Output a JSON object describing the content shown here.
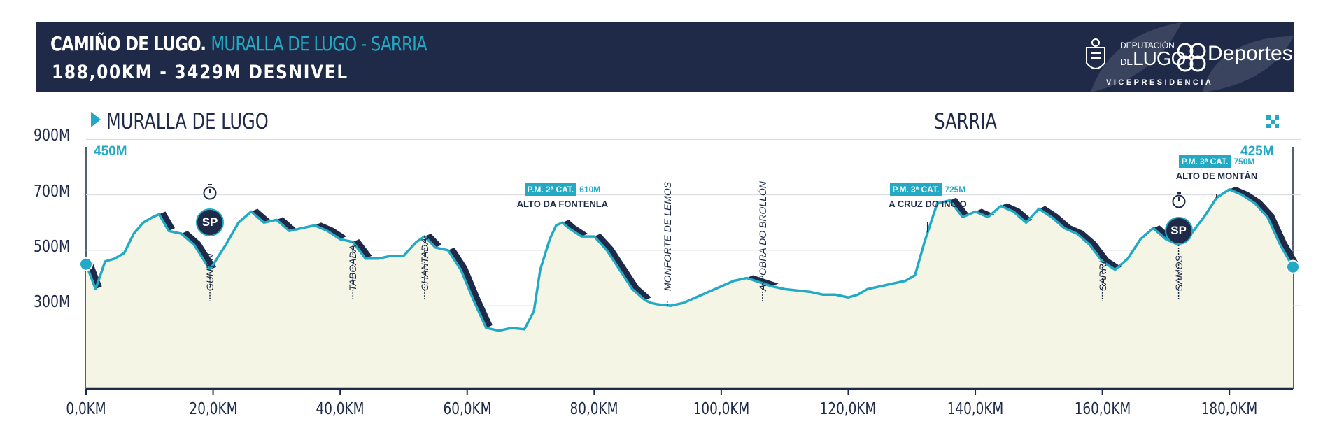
{
  "header": {
    "title_main": "CAMIÑO DE LUGO.",
    "title_accent": "MURALLA DE LUGO - SARRIA",
    "subtitle": "188,00KM - 3429M DESNIVEL",
    "logo": {
      "org_small": "DEPUTACIÓN",
      "org_de": "DE",
      "org_big": "LUGO",
      "brand": "Deportes",
      "vice": "VICEPRESIDENCIA"
    }
  },
  "start": {
    "name": "MURALLA DE LUGO",
    "altitude": "450M"
  },
  "finish": {
    "name": "SARRIA",
    "altitude": "425M"
  },
  "chart_data": {
    "type": "area",
    "xlabel": "",
    "ylabel": "",
    "xlim": [
      0,
      190
    ],
    "ylim": [
      0,
      1050
    ],
    "x_ticks": [
      0,
      20,
      40,
      60,
      80,
      100,
      120,
      140,
      160,
      180
    ],
    "x_tick_labels": [
      "0,0KM",
      "20,0KM",
      "40,0KM",
      "60,0KM",
      "80,0KM",
      "100,0KM",
      "120,0KM",
      "140,0KM",
      "160,0KM",
      "180,0KM"
    ],
    "y_ticks": [
      300,
      500,
      700,
      900
    ],
    "y_tick_labels": [
      "300M",
      "500M",
      "700M",
      "900M"
    ],
    "series": [
      {
        "x": [
          0,
          1.5,
          3,
          4.5,
          6,
          7.5,
          9,
          10.5,
          11.5,
          13,
          15,
          17,
          19.5,
          22,
          24,
          26,
          28,
          30,
          32,
          34,
          36,
          38,
          40,
          42,
          44,
          46,
          48,
          50,
          52,
          53.3,
          55,
          57,
          59,
          61,
          63,
          65,
          67,
          69,
          70.5,
          71.5,
          73,
          74,
          75,
          76,
          78,
          80,
          82,
          84,
          86,
          88,
          89,
          90,
          92,
          94,
          96,
          98,
          100,
          102,
          104,
          106,
          108,
          110,
          112,
          114,
          116,
          118,
          120,
          121.5,
          123,
          125,
          127,
          129,
          130.5,
          132,
          134,
          136,
          138,
          140,
          142,
          144,
          146,
          148,
          150,
          152,
          154,
          156,
          158,
          160,
          162,
          164,
          166,
          168,
          170,
          172,
          174,
          176,
          178,
          180,
          182,
          184,
          186,
          188,
          190
        ],
        "y": [
          450,
          360,
          460,
          470,
          490,
          560,
          600,
          620,
          630,
          570,
          560,
          520,
          430,
          520,
          600,
          640,
          600,
          610,
          570,
          580,
          590,
          570,
          540,
          530,
          470,
          470,
          480,
          480,
          530,
          550,
          510,
          500,
          430,
          320,
          220,
          210,
          220,
          215,
          280,
          430,
          540,
          590,
          600,
          580,
          550,
          550,
          500,
          430,
          360,
          320,
          310,
          305,
          300,
          310,
          330,
          350,
          370,
          390,
          400,
          385,
          370,
          360,
          355,
          350,
          340,
          340,
          330,
          340,
          360,
          370,
          380,
          390,
          410,
          530,
          670,
          680,
          620,
          640,
          620,
          660,
          640,
          600,
          650,
          620,
          580,
          560,
          520,
          460,
          430,
          470,
          540,
          580,
          540,
          520,
          560,
          620,
          690,
          720,
          700,
          670,
          620,
          520,
          440
        ]
      }
    ],
    "markers": [
      {
        "km": 19.5,
        "name": "GUNTÍN",
        "type": "town",
        "sprint": "SP"
      },
      {
        "km": 42,
        "name": "TABOADA",
        "type": "town"
      },
      {
        "km": 53.3,
        "name": "CHANTADA",
        "type": "town"
      },
      {
        "km": 75,
        "name": "ALTO DA FONTENLA",
        "type": "climb",
        "category": "P.M. 2ª CAT.",
        "altitude": "610M"
      },
      {
        "km": 91.5,
        "name": "MONFORTE DE LEMOS",
        "type": "town"
      },
      {
        "km": 106.5,
        "name": "A POBRA DO BROLLÓN",
        "type": "town"
      },
      {
        "km": 132.5,
        "name": "A CRUZ DO INCIO",
        "type": "climb",
        "category": "P.M. 3ª CAT.",
        "altitude": "725M"
      },
      {
        "km": 160,
        "name": "SARRIA",
        "type": "town"
      },
      {
        "km": 172,
        "name": "SAMOS",
        "type": "town",
        "sprint": "SP"
      },
      {
        "km": 178,
        "name": "ALTO DE MONTÁN",
        "type": "climb",
        "category": "P.M. 3ª CAT.",
        "altitude": "750M"
      }
    ],
    "grid": true,
    "legend": "none",
    "colors": {
      "line": "#22a9c4",
      "fill": "#f4f5e4",
      "shadow": "#1e2a47",
      "text": "#1e2a47",
      "accent": "#22a9c4"
    }
  }
}
